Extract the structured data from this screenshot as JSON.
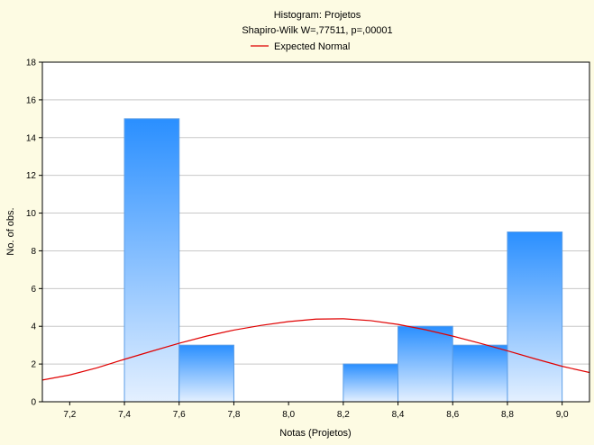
{
  "chart_data": {
    "type": "bar",
    "title": "Histogram: Projetos",
    "subtitle": "Shapiro-Wilk W=,77511, p=,00001",
    "legend": {
      "placement": "top-center",
      "entries": [
        "Expected Normal"
      ]
    },
    "xlabel": "Notas (Projetos)",
    "ylabel": "No. of obs.",
    "xlim": [
      7.1,
      9.1
    ],
    "ylim": [
      0,
      18
    ],
    "x_ticks": [
      7.2,
      7.4,
      7.6,
      7.8,
      8.0,
      8.2,
      8.4,
      8.6,
      8.8,
      9.0
    ],
    "x_tick_labels": [
      "7,2",
      "7,4",
      "7,6",
      "7,8",
      "8,0",
      "8,2",
      "8,4",
      "8,6",
      "8,8",
      "9,0"
    ],
    "y_ticks": [
      0,
      2,
      4,
      6,
      8,
      10,
      12,
      14,
      16,
      18
    ],
    "y_tick_labels": [
      "0",
      "2",
      "4",
      "6",
      "8",
      "10",
      "12",
      "14",
      "16",
      "18"
    ],
    "grid": {
      "horizontal": true,
      "vertical": false
    },
    "bins": [
      {
        "x0": 7.4,
        "x1": 7.6,
        "count": 15
      },
      {
        "x0": 7.6,
        "x1": 7.8,
        "count": 3
      },
      {
        "x0": 7.8,
        "x1": 8.0,
        "count": 0
      },
      {
        "x0": 8.0,
        "x1": 8.2,
        "count": 0
      },
      {
        "x0": 8.2,
        "x1": 8.4,
        "count": 2
      },
      {
        "x0": 8.4,
        "x1": 8.6,
        "count": 4
      },
      {
        "x0": 8.6,
        "x1": 8.8,
        "count": 3
      },
      {
        "x0": 8.8,
        "x1": 9.0,
        "count": 9
      }
    ],
    "expected_normal": {
      "name": "Expected Normal",
      "color": "#e00000",
      "points": [
        [
          7.1,
          1.15
        ],
        [
          7.2,
          1.42
        ],
        [
          7.3,
          1.8
        ],
        [
          7.4,
          2.25
        ],
        [
          7.5,
          2.68
        ],
        [
          7.6,
          3.1
        ],
        [
          7.7,
          3.48
        ],
        [
          7.8,
          3.8
        ],
        [
          7.9,
          4.05
        ],
        [
          8.0,
          4.25
        ],
        [
          8.1,
          4.38
        ],
        [
          8.2,
          4.4
        ],
        [
          8.3,
          4.3
        ],
        [
          8.4,
          4.1
        ],
        [
          8.5,
          3.82
        ],
        [
          8.6,
          3.48
        ],
        [
          8.7,
          3.1
        ],
        [
          8.8,
          2.7
        ],
        [
          8.9,
          2.28
        ],
        [
          9.0,
          1.88
        ],
        [
          9.1,
          1.55
        ]
      ]
    },
    "colors": {
      "background": "#fdfbe3",
      "plot_background": "#ffffff",
      "bar_top": "#2a8fff",
      "bar_bottom": "#e4f0ff",
      "bar_stroke": "#5c9ee6",
      "grid": "#c8c8c8"
    }
  }
}
